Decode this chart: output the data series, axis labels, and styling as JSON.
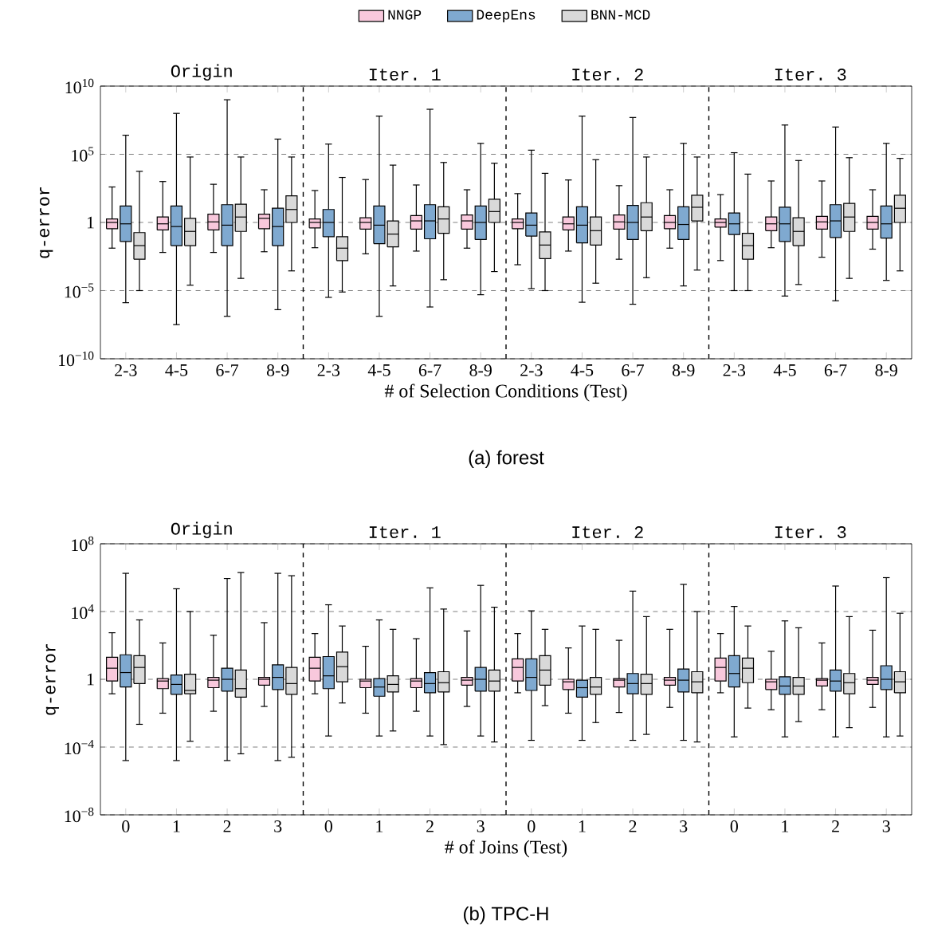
{
  "chart_data": [
    {
      "type": "box",
      "xlabel": "# of Selection Conditions (Test)",
      "ylabel": "q-error",
      "categories": [
        "2-3",
        "4-5",
        "6-7",
        "8-9",
        "2-3",
        "4-5",
        "6-7",
        "8-9",
        "2-3",
        "4-5",
        "6-7",
        "8-9",
        "2-3",
        "4-5",
        "6-7",
        "8-9"
      ],
      "log": "y",
      "ylim": [
        1e-10,
        10000000000.0
      ],
      "yticks": [
        {
          "value": 1e-10,
          "label": "10$^{−10}$"
        },
        {
          "value": 1e-05,
          "label": "10$^{−5}$"
        },
        1,
        {
          "value": 100000.0,
          "label": "10$^{5}$"
        },
        {
          "value": 10000000000.0,
          "label": "10$^{10}$"
        }
      ],
      "grid": "y",
      "legend": "top",
      "annotations": [
        "Origin",
        "Iter. 1",
        "Iter. 2",
        "Iter. 3",
        "(a) forest"
      ],
      "series": [
        {
          "name": "NNGP",
          "color": "#f8c8dc",
          "boxes": [
            {
              "low": 0.013,
              "q1": 0.35,
              "median": 1,
              "q3": 1.8,
              "high": 400.0
            },
            {
              "low": 0.0063,
              "q1": 0.28,
              "median": 0.79,
              "q3": 2.5,
              "high": 1000.0
            },
            {
              "low": 0.0063,
              "q1": 0.28,
              "median": 1.1,
              "q3": 4,
              "high": 630.0
            },
            {
              "low": 0.0071,
              "q1": 0.35,
              "median": 2,
              "q3": 4,
              "high": 250.0
            },
            {
              "low": 0.014,
              "q1": 0.4,
              "median": 1,
              "q3": 1.8,
              "high": 220.0
            },
            {
              "low": 0.005,
              "q1": 0.32,
              "median": 1,
              "q3": 2.2,
              "high": 1400.0
            },
            {
              "low": 0.0079,
              "q1": 0.32,
              "median": 1.3,
              "q3": 3.2,
              "high": 560.0
            },
            {
              "low": 0.013,
              "q1": 0.32,
              "median": 1.3,
              "q3": 3.5,
              "high": 250.0
            },
            {
              "low": 0.00079,
              "q1": 0.35,
              "median": 1,
              "q3": 1.8,
              "high": 130.0
            },
            {
              "low": 0.0079,
              "q1": 0.28,
              "median": 0.79,
              "q3": 2.5,
              "high": 1300.0
            },
            {
              "low": 0.002,
              "q1": 0.32,
              "median": 1.1,
              "q3": 3.5,
              "high": 500.0
            },
            {
              "low": 0.013,
              "q1": 0.35,
              "median": 1,
              "q3": 3.2,
              "high": 250.0
            },
            {
              "low": 0.0016,
              "q1": 0.45,
              "median": 1,
              "q3": 1.8,
              "high": 110.0
            },
            {
              "low": 0.014,
              "q1": 0.25,
              "median": 0.79,
              "q3": 2.5,
              "high": 1100.0
            },
            {
              "low": 0.0028,
              "q1": 0.32,
              "median": 1.1,
              "q3": 2.8,
              "high": 1100.0
            },
            {
              "low": 0.011,
              "q1": 0.32,
              "median": 1,
              "q3": 2.8,
              "high": 250.0
            }
          ]
        },
        {
          "name": "DeepEns",
          "color": "#7fa9d0",
          "boxes": [
            {
              "low": 1.3e-06,
              "q1": 0.04,
              "median": 0.79,
              "q3": 16.0,
              "high": 2500000.0
            },
            {
              "low": 3.2e-08,
              "q1": 0.02,
              "median": 0.5,
              "q3": 16.0,
              "high": 100000000.0
            },
            {
              "low": 1.3e-07,
              "q1": 0.02,
              "median": 0.63,
              "q3": 20.0,
              "high": 1000000000.0
            },
            {
              "low": 4e-07,
              "q1": 0.02,
              "median": 0.5,
              "q3": 11.0,
              "high": 1300000.0
            },
            {
              "low": 3.2e-06,
              "q1": 0.089,
              "median": 1,
              "q3": 8.9,
              "high": 560000.0
            },
            {
              "low": 1.3e-07,
              "q1": 0.028,
              "median": 0.63,
              "q3": 16.0,
              "high": 63000000.0
            },
            {
              "low": 6.3e-07,
              "q1": 0.063,
              "median": 1.3,
              "q3": 20.0,
              "high": 200000000.0
            },
            {
              "low": 5e-06,
              "q1": 0.056,
              "median": 1,
              "q3": 16.0,
              "high": 630000.0
            },
            {
              "low": 1.4e-05,
              "q1": 0.1,
              "median": 0.63,
              "q3": 5,
              "high": 200000.0
            },
            {
              "low": 1.4e-06,
              "q1": 0.032,
              "median": 0.63,
              "q3": 14.0,
              "high": 63000000.0
            },
            {
              "low": 1e-06,
              "q1": 0.056,
              "median": 1,
              "q3": 18.0,
              "high": 50000000.0
            },
            {
              "low": 2.2e-05,
              "q1": 0.056,
              "median": 0.71,
              "q3": 14.0,
              "high": 630000.0
            },
            {
              "low": 1e-05,
              "q1": 0.13,
              "median": 0.79,
              "q3": 5,
              "high": 130000.0
            },
            {
              "low": 4e-06,
              "q1": 0.04,
              "median": 0.79,
              "q3": 13.0,
              "high": 14000000.0
            },
            {
              "low": 1.8e-06,
              "q1": 0.079,
              "median": 1.3,
              "q3": 20.0,
              "high": 10000000.0
            },
            {
              "low": 5.6e-05,
              "q1": 0.071,
              "median": 0.79,
              "q3": 16.0,
              "high": 630000.0
            }
          ]
        },
        {
          "name": "BNN-MCD",
          "color": "#d9d9d9",
          "boxes": [
            {
              "low": 1e-05,
              "q1": 0.002,
              "median": 0.02,
              "q3": 0.18,
              "high": 5600.0
            },
            {
              "low": 2.5e-05,
              "q1": 0.02,
              "median": 0.22,
              "q3": 2,
              "high": 63000.0
            },
            {
              "low": 7.9e-05,
              "q1": 0.22,
              "median": 2.5,
              "q3": 22.0,
              "high": 63000.0
            },
            {
              "low": 0.00028,
              "q1": 1,
              "median": 8.9,
              "q3": 89.0,
              "high": 63000.0
            },
            {
              "low": 7.9e-06,
              "q1": 0.0016,
              "median": 0.013,
              "q3": 0.089,
              "high": 2000.0
            },
            {
              "low": 2.2e-05,
              "q1": 0.016,
              "median": 0.14,
              "q3": 1.3,
              "high": 16000.0
            },
            {
              "low": 6.3e-05,
              "q1": 0.16,
              "median": 1.8,
              "q3": 14.0,
              "high": 25000.0
            },
            {
              "low": 0.00025,
              "q1": 1,
              "median": 6.3,
              "q3": 50.0,
              "high": 22000.0
            },
            {
              "low": 1e-05,
              "q1": 0.0022,
              "median": 0.022,
              "q3": 0.2,
              "high": 4000.0
            },
            {
              "low": 3.5e-05,
              "q1": 0.022,
              "median": 0.25,
              "q3": 2.5,
              "high": 40000.0
            },
            {
              "low": 8.9e-05,
              "q1": 0.25,
              "median": 2.5,
              "q3": 28.0,
              "high": 63000.0
            },
            {
              "low": 0.00032,
              "q1": 1.3,
              "median": 13.0,
              "q3": 100.0,
              "high": 63000.0
            },
            {
              "low": 1e-05,
              "q1": 0.002,
              "median": 0.02,
              "q3": 0.16,
              "high": 3500.0
            },
            {
              "low": 2.8e-05,
              "q1": 0.02,
              "median": 0.22,
              "q3": 2.2,
              "high": 35000.0
            },
            {
              "low": 7.9e-05,
              "q1": 0.22,
              "median": 2.5,
              "q3": 25.0,
              "high": 56000.0
            },
            {
              "low": 0.00028,
              "q1": 1,
              "median": 11.0,
              "q3": 100.0,
              "high": 50000.0
            }
          ]
        }
      ]
    },
    {
      "type": "box",
      "xlabel": "# of Joins (Test)",
      "ylabel": "q-error",
      "categories": [
        "0",
        "1",
        "2",
        "3",
        "0",
        "1",
        "2",
        "3",
        "0",
        "1",
        "2",
        "3",
        "0",
        "1",
        "2",
        "3"
      ],
      "log": "y",
      "ylim": [
        1e-08,
        100000000.0
      ],
      "yticks": [
        {
          "value": 1e-08,
          "label": "10$^{−8}$"
        },
        {
          "value": 0.0001,
          "label": "10$^{−4}$"
        },
        1,
        {
          "value": 10000.0,
          "label": "10$^{4}$"
        },
        {
          "value": 100000000.0,
          "label": "10$^{8}$"
        }
      ],
      "grid": "y",
      "annotations": [
        "Origin",
        "Iter. 1",
        "Iter. 2",
        "Iter. 3",
        "(b) TPC-H"
      ],
      "series": [
        {
          "color": "#f8c8dc",
          "boxes": [
            {
              "low": 0.14,
              "q1": 0.79,
              "median": 4.5,
              "q3": 20.0,
              "high": 560.0
            },
            {
              "low": 0.01,
              "q1": 0.28,
              "median": 0.79,
              "q3": 1.1,
              "high": 140.0
            },
            {
              "low": 0.013,
              "q1": 0.32,
              "median": 0.89,
              "q3": 1.3,
              "high": 400.0
            },
            {
              "low": 0.025,
              "q1": 0.45,
              "median": 1,
              "q3": 1.3,
              "high": 2200.0
            },
            {
              "low": 0.14,
              "q1": 0.79,
              "median": 4.5,
              "q3": 20.0,
              "high": 500.0
            },
            {
              "low": 0.01,
              "q1": 0.32,
              "median": 0.79,
              "q3": 1,
              "high": 89.0
            },
            {
              "low": 0.013,
              "q1": 0.32,
              "median": 0.79,
              "q3": 1.1,
              "high": 250.0
            },
            {
              "low": 0.025,
              "q1": 0.45,
              "median": 0.89,
              "q3": 1.3,
              "high": 710.0
            },
            {
              "low": 0.16,
              "q1": 0.79,
              "median": 5,
              "q3": 16.0,
              "high": 500.0
            },
            {
              "low": 0.01,
              "q1": 0.25,
              "median": 0.71,
              "q3": 1,
              "high": 71.0
            },
            {
              "low": 0.011,
              "q1": 0.35,
              "median": 0.89,
              "q3": 1.1,
              "high": 200.0
            },
            {
              "low": 0.022,
              "q1": 0.45,
              "median": 0.89,
              "q3": 1.3,
              "high": 890.0
            },
            {
              "low": 0.16,
              "q1": 0.79,
              "median": 5,
              "q3": 18.0,
              "high": 500.0
            },
            {
              "low": 0.016,
              "q1": 0.25,
              "median": 0.71,
              "q3": 1,
              "high": 45.0
            },
            {
              "low": 0.016,
              "q1": 0.4,
              "median": 0.89,
              "q3": 1.1,
              "high": 140.0
            },
            {
              "low": 0.022,
              "q1": 0.5,
              "median": 0.89,
              "q3": 1.3,
              "high": 790.0
            }
          ]
        },
        {
          "color": "#7fa9d0",
          "boxes": [
            {
              "low": 1.6e-05,
              "q1": 0.35,
              "median": 2.5,
              "q3": 28.0,
              "high": 1800000.0
            },
            {
              "low": 1.6e-05,
              "q1": 0.13,
              "median": 0.5,
              "q3": 1.8,
              "high": 220000.0
            },
            {
              "low": 1.6e-05,
              "q1": 0.2,
              "median": 1,
              "q3": 4.5,
              "high": 890000.0
            },
            {
              "low": 1.6e-05,
              "q1": 0.25,
              "median": 1.3,
              "q3": 7.1,
              "high": 1800000.0
            },
            {
              "low": 0.00045,
              "q1": 0.28,
              "median": 1.6,
              "q3": 22.0,
              "high": 25000.0
            },
            {
              "low": 0.00045,
              "q1": 0.1,
              "median": 0.35,
              "q3": 1.1,
              "high": 3200.0
            },
            {
              "low": 0.00045,
              "q1": 0.16,
              "median": 0.56,
              "q3": 2.5,
              "high": 250000.0
            },
            {
              "low": 0.00045,
              "q1": 0.2,
              "median": 1,
              "q3": 5,
              "high": 350000.0
            },
            {
              "low": 0.00025,
              "q1": 0.22,
              "median": 1.3,
              "q3": 16.0,
              "high": 11000.0
            },
            {
              "low": 0.00025,
              "q1": 0.089,
              "median": 0.32,
              "q3": 0.89,
              "high": 1400.0
            },
            {
              "low": 0.00025,
              "q1": 0.14,
              "median": 0.56,
              "q3": 2.2,
              "high": 160000.0
            },
            {
              "low": 0.00025,
              "q1": 0.18,
              "median": 0.89,
              "q3": 4,
              "high": 400000.0
            },
            {
              "low": 0.0004,
              "q1": 0.35,
              "median": 2.2,
              "q3": 25.0,
              "high": 20000.0
            },
            {
              "low": 0.0004,
              "q1": 0.13,
              "median": 0.4,
              "q3": 1.4,
              "high": 2800.0
            },
            {
              "low": 0.0004,
              "q1": 0.2,
              "median": 0.79,
              "q3": 3.5,
              "high": 320000.0
            },
            {
              "low": 0.0004,
              "q1": 0.25,
              "median": 1,
              "q3": 6.3,
              "high": 1000000.0
            }
          ]
        },
        {
          "color": "#d9d9d9",
          "boxes": [
            {
              "low": 0.0022,
              "q1": 0.56,
              "median": 5,
              "q3": 25.0,
              "high": 3200.0
            },
            {
              "low": 0.00022,
              "q1": 0.14,
              "median": 0.22,
              "q3": 2,
              "high": 10000.0
            },
            {
              "low": 4e-05,
              "q1": 0.089,
              "median": 0.28,
              "q3": 3.5,
              "high": 2000000.0
            },
            {
              "low": 2.5e-05,
              "q1": 0.13,
              "median": 0.56,
              "q3": 5,
              "high": 1300000.0
            },
            {
              "low": 0.04,
              "q1": 0.71,
              "median": 5.6,
              "q3": 40.0,
              "high": 1400.0
            },
            {
              "low": 0.00089,
              "q1": 0.18,
              "median": 0.5,
              "q3": 1.6,
              "high": 890.0
            },
            {
              "low": 0.00014,
              "q1": 0.18,
              "median": 0.63,
              "q3": 2.8,
              "high": 14000.0
            },
            {
              "low": 0.0002,
              "q1": 0.2,
              "median": 0.79,
              "q3": 3.5,
              "high": 18000.0
            },
            {
              "low": 0.028,
              "q1": 0.45,
              "median": 3.5,
              "q3": 25.0,
              "high": 890.0
            },
            {
              "low": 0.0028,
              "q1": 0.13,
              "median": 0.35,
              "q3": 1.3,
              "high": 890.0
            },
            {
              "low": 0.00056,
              "q1": 0.13,
              "median": 0.56,
              "q3": 2,
              "high": 5000.0
            },
            {
              "low": 0.0002,
              "q1": 0.16,
              "median": 0.71,
              "q3": 2.8,
              "high": 10000.0
            },
            {
              "low": 0.02,
              "q1": 0.63,
              "median": 4.5,
              "q3": 18.0,
              "high": 1400.0
            },
            {
              "low": 0.0032,
              "q1": 0.13,
              "median": 0.4,
              "q3": 1.3,
              "high": 1100.0
            },
            {
              "low": 0.0014,
              "q1": 0.14,
              "median": 0.63,
              "q3": 2.2,
              "high": 5000.0
            },
            {
              "low": 0.00045,
              "q1": 0.16,
              "median": 0.71,
              "q3": 2.8,
              "high": 7900.0
            }
          ]
        }
      ]
    }
  ]
}
